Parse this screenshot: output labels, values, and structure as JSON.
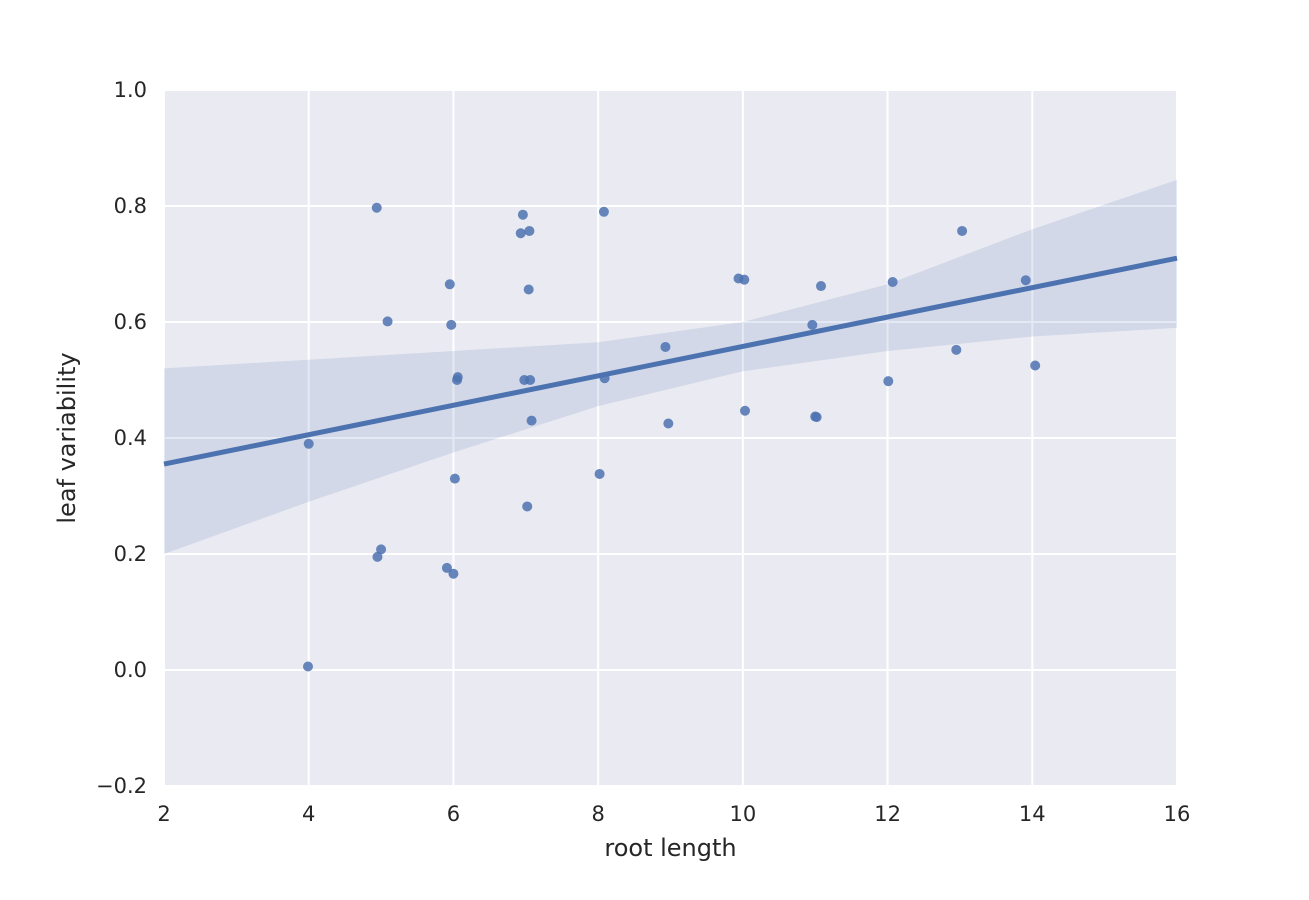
{
  "chart_data": {
    "type": "scatter",
    "title": "",
    "xlabel": "root length",
    "ylabel": "leaf variability",
    "xlim": [
      2,
      16
    ],
    "ylim": [
      -0.2,
      1.0
    ],
    "x_ticks": [
      2,
      4,
      6,
      8,
      10,
      12,
      14,
      16
    ],
    "y_ticks": [
      -0.2,
      0.0,
      0.2,
      0.4,
      0.6,
      0.8,
      1.0
    ],
    "x_tick_labels": [
      "2",
      "4",
      "6",
      "8",
      "10",
      "12",
      "14",
      "16"
    ],
    "y_tick_labels": [
      "−0.2",
      "0.0",
      "0.2",
      "0.4",
      "0.6",
      "0.8",
      "1.0"
    ],
    "grid": true,
    "background_color": "#eaeaf2",
    "grid_color": "#ffffff",
    "point_color": "#4c72b0",
    "line_color": "#4c72b0",
    "band_color": "#4c72b0",
    "points": [
      [
        3.99,
        0.006
      ],
      [
        4.0,
        0.39
      ],
      [
        4.94,
        0.797
      ],
      [
        4.95,
        0.195
      ],
      [
        5.0,
        0.208
      ],
      [
        5.09,
        0.601
      ],
      [
        5.91,
        0.176
      ],
      [
        5.95,
        0.665
      ],
      [
        5.97,
        0.595
      ],
      [
        6.0,
        0.166
      ],
      [
        6.02,
        0.33
      ],
      [
        6.05,
        0.5
      ],
      [
        6.06,
        0.505
      ],
      [
        6.93,
        0.753
      ],
      [
        6.96,
        0.785
      ],
      [
        6.98,
        0.5
      ],
      [
        7.02,
        0.282
      ],
      [
        7.04,
        0.656
      ],
      [
        7.05,
        0.757
      ],
      [
        7.06,
        0.5
      ],
      [
        7.08,
        0.43
      ],
      [
        8.02,
        0.338
      ],
      [
        8.08,
        0.79
      ],
      [
        8.09,
        0.503
      ],
      [
        8.93,
        0.557
      ],
      [
        8.97,
        0.425
      ],
      [
        9.94,
        0.675
      ],
      [
        10.02,
        0.673
      ],
      [
        10.03,
        0.447
      ],
      [
        10.96,
        0.595
      ],
      [
        11.0,
        0.437
      ],
      [
        11.02,
        0.436
      ],
      [
        11.08,
        0.662
      ],
      [
        12.01,
        0.498
      ],
      [
        12.07,
        0.669
      ],
      [
        12.95,
        0.552
      ],
      [
        13.03,
        0.757
      ],
      [
        13.91,
        0.672
      ],
      [
        14.04,
        0.525
      ]
    ],
    "regression": {
      "x": [
        2,
        16
      ],
      "y": [
        0.355,
        0.71
      ]
    },
    "confidence_band": {
      "x": [
        2,
        4,
        6,
        8,
        10,
        12,
        14,
        16
      ],
      "lower": [
        0.2,
        0.29,
        0.375,
        0.455,
        0.515,
        0.55,
        0.575,
        0.59
      ],
      "upper": [
        0.52,
        0.535,
        0.55,
        0.565,
        0.6,
        0.665,
        0.76,
        0.845
      ]
    }
  }
}
